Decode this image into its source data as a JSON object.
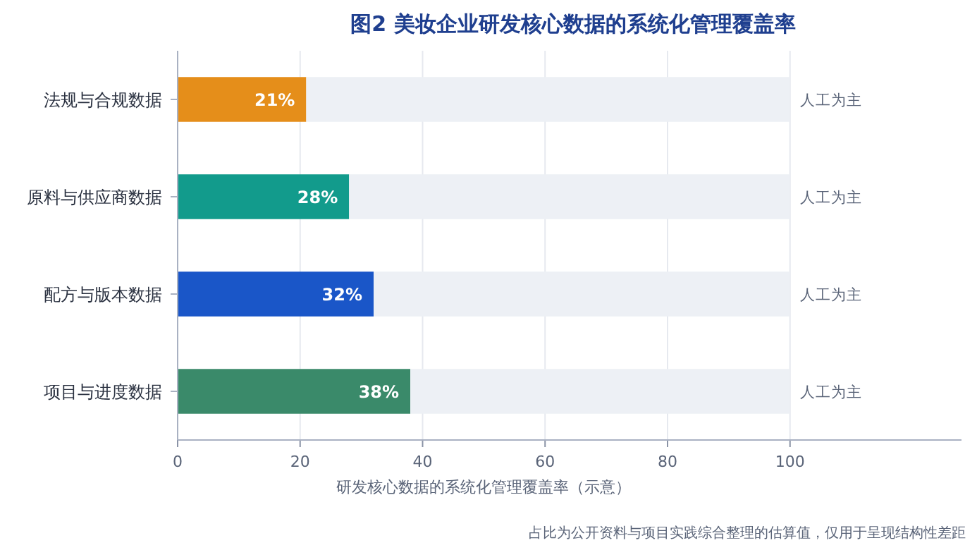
{
  "chart_data": {
    "type": "bar",
    "orientation": "horizontal",
    "stacked": true,
    "title": "图2  美妆企业研发核心数据的系统化管理覆盖率",
    "xlabel": "研发核心数据的系统化管理覆盖率（示意）",
    "categories": [
      "法规与合规数据",
      "原料与供应商数据",
      "配方与版本数据",
      "项目与进度数据"
    ],
    "series": [
      {
        "colors": [
          "#e58e1a",
          "#129b8c",
          "#1a56c8",
          "#3a8a6a"
        ],
        "values": [
          21,
          28,
          32,
          38
        ],
        "value_labels": [
          "21%",
          "28%",
          "32%",
          "38%"
        ]
      },
      {
        "color": "#edf0f5",
        "values": [
          79,
          72,
          68,
          62
        ]
      }
    ],
    "xlim": [
      0,
      128
    ],
    "xticks": [
      0,
      20,
      40,
      60,
      80,
      100
    ],
    "grid": "x",
    "annotations": [
      "人工为主",
      "人工为主",
      "人工为主",
      "人工为主",
      "占比为公开资料与项目实践综合整理的估算值，仅用于呈现结构性差距"
    ]
  }
}
